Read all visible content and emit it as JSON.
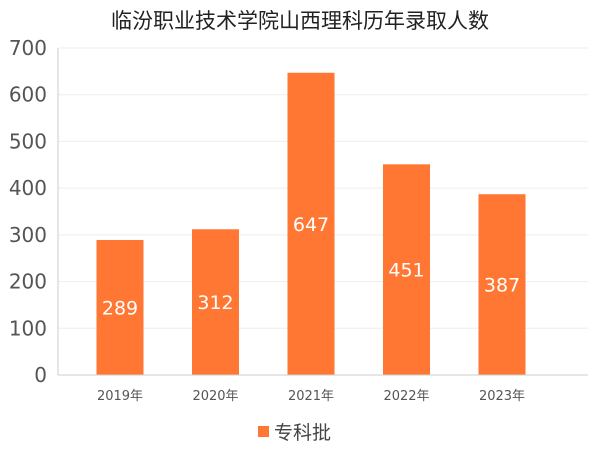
{
  "chart_data": {
    "type": "bar",
    "title": "临汾职业技术学院山西理科历年录取人数",
    "categories": [
      "2019年",
      "2020年",
      "2021年",
      "2022年",
      "2023年"
    ],
    "series": [
      {
        "name": "专科批",
        "values": [
          289,
          312,
          647,
          451,
          387
        ]
      }
    ],
    "ylim": [
      0,
      700
    ],
    "yticks": [
      0,
      100,
      200,
      300,
      400,
      500,
      600,
      700
    ],
    "xlabel": "",
    "ylabel": "",
    "grid": true,
    "legend": "bottom-center",
    "colors": {
      "bar": "#ff7733",
      "grid": "#eeeeee",
      "axis": "#cccccc"
    }
  }
}
